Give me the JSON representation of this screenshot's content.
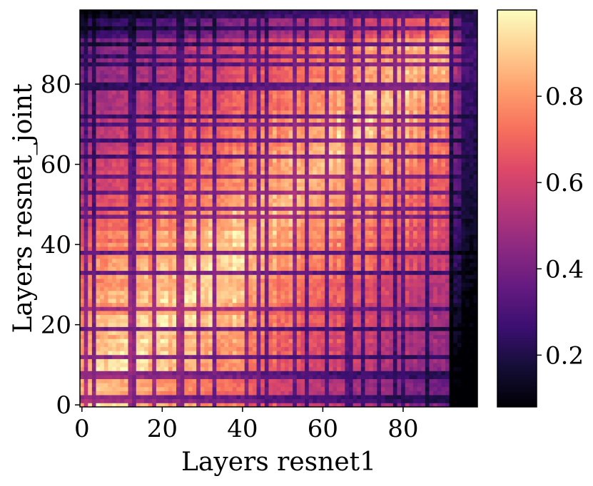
{
  "chart_data": {
    "type": "heatmap",
    "title": "",
    "xlabel": "Layers resnet1",
    "ylabel": "Layers resnet_joint",
    "n_cols": 99,
    "n_rows": 99,
    "xlim": [
      0,
      98
    ],
    "ylim": [
      0,
      98
    ],
    "x_ticks": [
      0,
      20,
      40,
      60,
      80
    ],
    "y_ticks": [
      0,
      20,
      40,
      60,
      80
    ],
    "x_tick_labels": [
      "0",
      "20",
      "40",
      "60",
      "80"
    ],
    "y_tick_labels": [
      "0",
      "20",
      "40",
      "60",
      "80"
    ],
    "value_range": [
      0.08,
      1.0
    ],
    "colormap": "magma",
    "colorbar": {
      "ticks": [
        0.2,
        0.4,
        0.6,
        0.8
      ],
      "tick_labels": [
        "0.2",
        "0.4",
        "0.6",
        "0.8"
      ]
    },
    "y_origin": "bottom",
    "dark_columns": [
      1,
      3,
      12,
      13,
      18,
      24,
      25,
      29,
      33,
      41,
      44,
      46,
      53,
      56,
      61,
      66,
      67,
      70,
      74,
      78,
      80,
      86,
      92,
      95,
      96,
      97,
      98
    ],
    "dark_rows": [
      1,
      2,
      7,
      8,
      12,
      19,
      24,
      33,
      38,
      47,
      49,
      53,
      57,
      62,
      66,
      70,
      72,
      79,
      80,
      85,
      87,
      90,
      94,
      97,
      98
    ],
    "bright_block": {
      "x": [
        0,
        45
      ],
      "y": [
        0,
        45
      ]
    },
    "notes_on_values": "Similarity matrix: high values (0.8-1.0) near diagonal and lower-left block; dark bands (0.1-0.3) along specific layer rows/columns; last ~6 columns mostly dark"
  }
}
